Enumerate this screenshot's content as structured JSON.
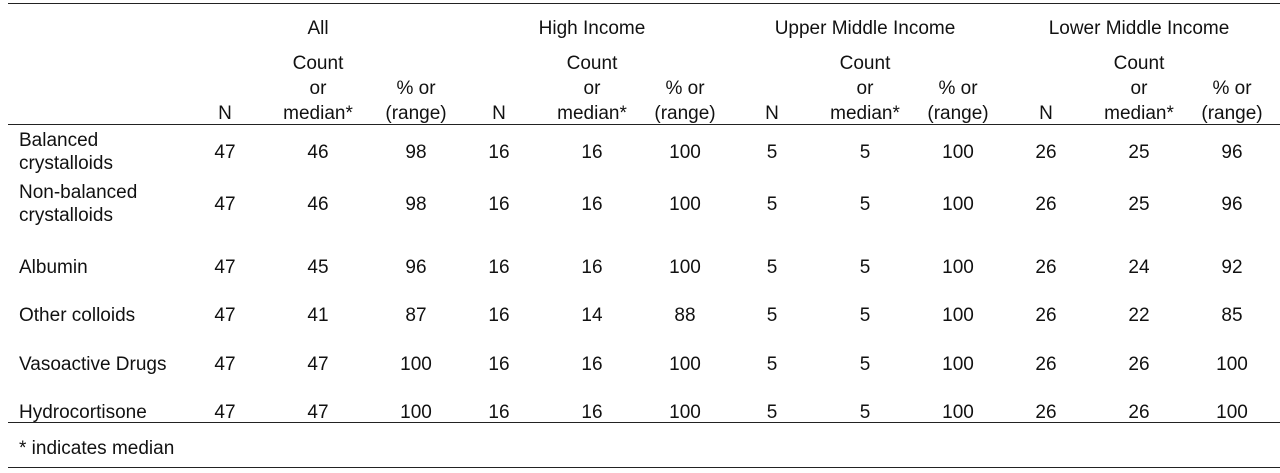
{
  "groups": [
    "All",
    "High Income",
    "Upper Middle Income",
    "Lower Middle Income"
  ],
  "subheaders": {
    "n": "N",
    "count_lines": [
      "Count",
      "or",
      "median*"
    ],
    "pct_lines": [
      "% or",
      "(range)"
    ]
  },
  "rows": [
    {
      "label_lines": [
        "Balanced",
        "crystalloids"
      ],
      "values": [
        "47",
        "46",
        "98",
        "16",
        "16",
        "100",
        "5",
        "5",
        "100",
        "26",
        "25",
        "96"
      ]
    },
    {
      "label_lines": [
        "Non-balanced",
        "crystalloids"
      ],
      "values": [
        "47",
        "46",
        "98",
        "16",
        "16",
        "100",
        "5",
        "5",
        "100",
        "26",
        "25",
        "96"
      ]
    },
    {
      "label_lines": [
        "Albumin"
      ],
      "values": [
        "47",
        "45",
        "96",
        "16",
        "16",
        "100",
        "5",
        "5",
        "100",
        "26",
        "24",
        "92"
      ]
    },
    {
      "label_lines": [
        "Other colloids"
      ],
      "values": [
        "47",
        "41",
        "87",
        "16",
        "14",
        "88",
        "5",
        "5",
        "100",
        "26",
        "22",
        "85"
      ]
    },
    {
      "label_lines": [
        "Vasoactive Drugs"
      ],
      "values": [
        "47",
        "47",
        "100",
        "16",
        "16",
        "100",
        "5",
        "5",
        "100",
        "26",
        "26",
        "100"
      ]
    },
    {
      "label_lines": [
        "Hydrocortisone"
      ],
      "values": [
        "47",
        "47",
        "100",
        "16",
        "16",
        "100",
        "5",
        "5",
        "100",
        "26",
        "26",
        "100"
      ]
    }
  ],
  "footnote": "* indicates median"
}
